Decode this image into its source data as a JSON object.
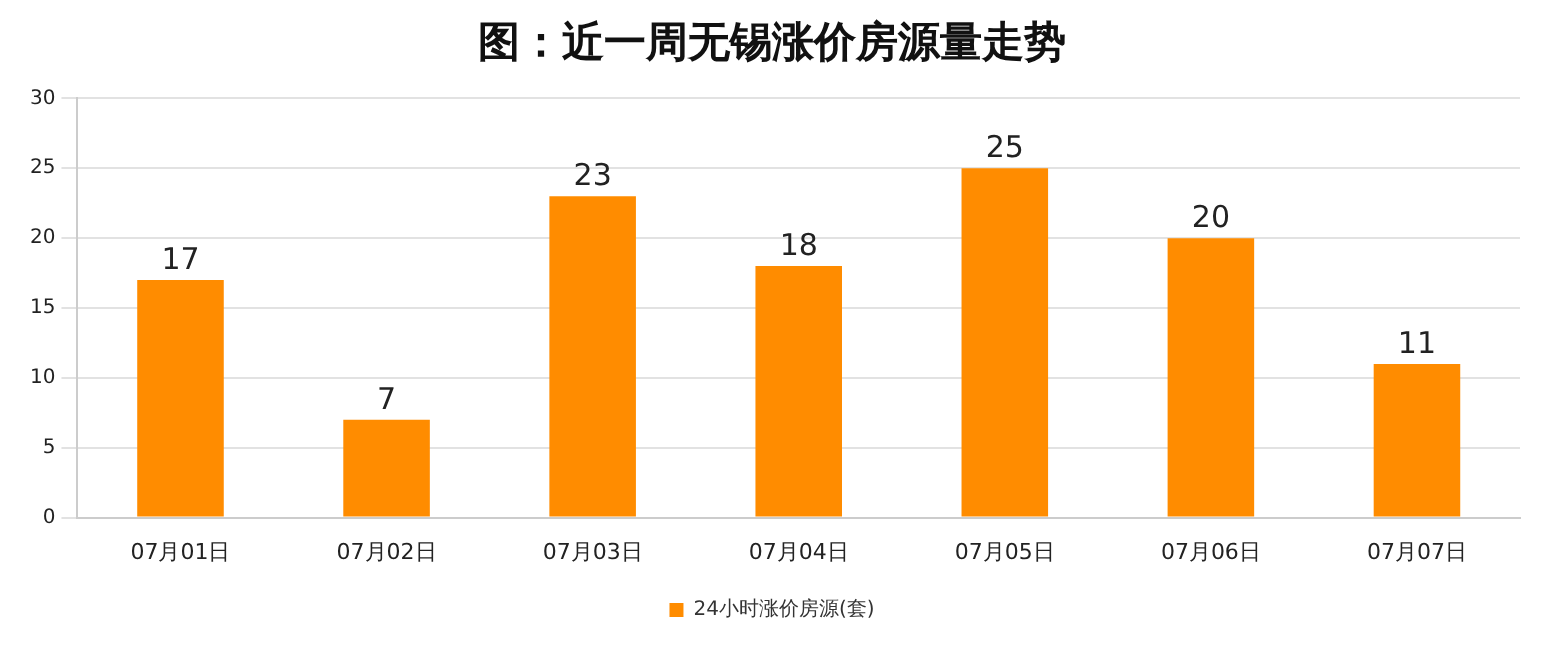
{
  "chart_data": {
    "type": "bar",
    "title": "图：近一周无锡涨价房源量走势",
    "categories": [
      "07月01日",
      "07月02日",
      "07月03日",
      "07月04日",
      "07月05日",
      "07月06日",
      "07月07日"
    ],
    "series": [
      {
        "name": "24小时涨价房源(套)",
        "color": "#ff8c00",
        "values": [
          17,
          7,
          23,
          18,
          25,
          20,
          11
        ]
      }
    ],
    "ylim": [
      0,
      30
    ],
    "yticks": [
      0,
      5,
      10,
      15,
      20,
      25,
      30
    ],
    "grid": "y",
    "legend": "bottom",
    "data_labels": true
  }
}
